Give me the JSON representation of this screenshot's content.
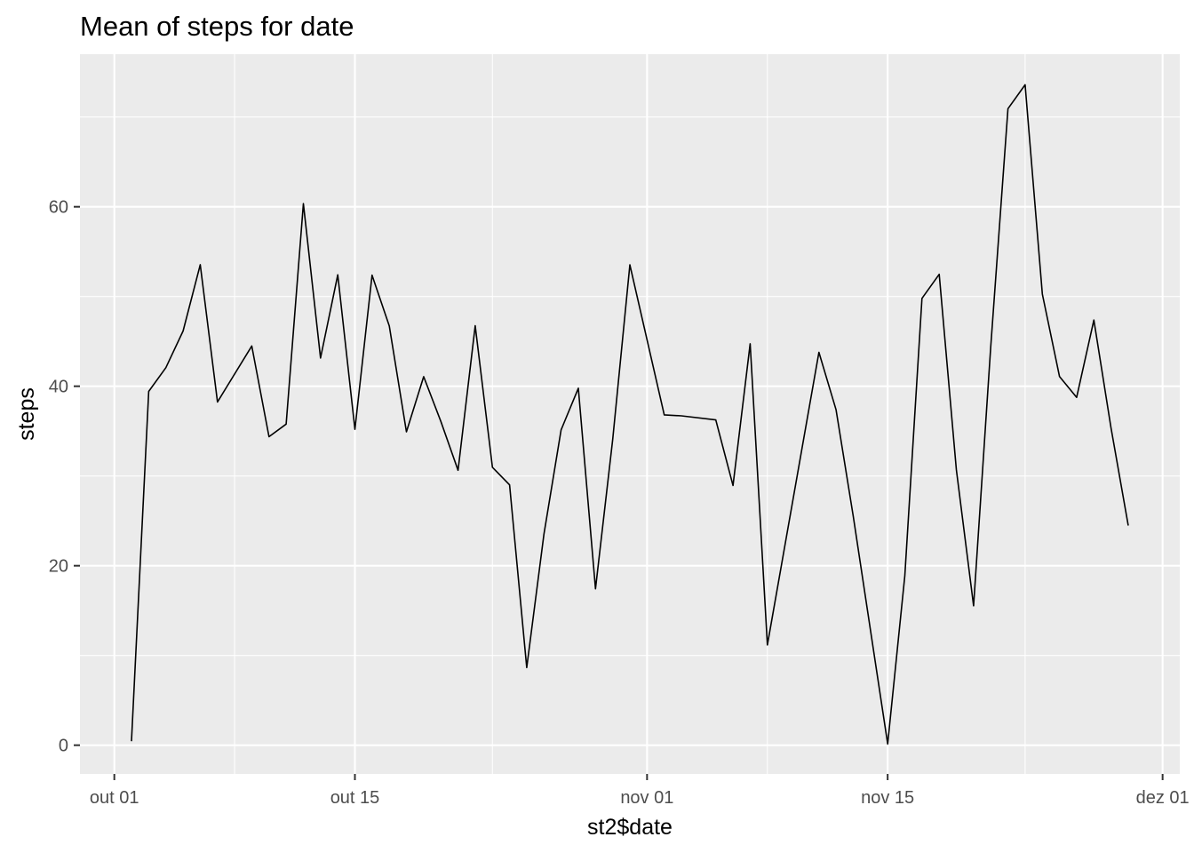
{
  "chart_data": {
    "type": "line",
    "title": "Mean of steps for date",
    "xlabel": "st2$date",
    "ylabel": "steps",
    "x_type": "date",
    "xlim": [
      "2012-09-29",
      "2012-12-02"
    ],
    "ylim": [
      -3.2,
      77.0
    ],
    "grid": true,
    "legend": "none",
    "x_ticks": [
      {
        "value": "2012-10-01",
        "label": "out 01"
      },
      {
        "value": "2012-10-15",
        "label": "out 15"
      },
      {
        "value": "2012-11-01",
        "label": "nov 01"
      },
      {
        "value": "2012-11-15",
        "label": "nov 15"
      },
      {
        "value": "2012-12-01",
        "label": "dez 01"
      }
    ],
    "x_minor_ticks": [
      "2012-10-08",
      "2012-10-23",
      "2012-11-08",
      "2012-11-23"
    ],
    "y_ticks": [
      {
        "value": 0,
        "label": "0"
      },
      {
        "value": 20,
        "label": "20"
      },
      {
        "value": 40,
        "label": "40"
      },
      {
        "value": 60,
        "label": "60"
      }
    ],
    "y_minor_ticks": [
      10,
      30,
      50,
      70
    ],
    "line_color": "#000000",
    "panel_color": "#EBEBEB",
    "series": [
      {
        "x": [
          "2012-10-02",
          "2012-10-03",
          "2012-10-04",
          "2012-10-05",
          "2012-10-06",
          "2012-10-07",
          "2012-10-09",
          "2012-10-10",
          "2012-10-11",
          "2012-10-12",
          "2012-10-13",
          "2012-10-14",
          "2012-10-15",
          "2012-10-16",
          "2012-10-17",
          "2012-10-18",
          "2012-10-19",
          "2012-10-20",
          "2012-10-21",
          "2012-10-22",
          "2012-10-23",
          "2012-10-24",
          "2012-10-25",
          "2012-10-26",
          "2012-10-27",
          "2012-10-28",
          "2012-10-29",
          "2012-10-30",
          "2012-10-31",
          "2012-11-02",
          "2012-11-03",
          "2012-11-05",
          "2012-11-06",
          "2012-11-07",
          "2012-11-08",
          "2012-11-11",
          "2012-11-12",
          "2012-11-13",
          "2012-11-15",
          "2012-11-16",
          "2012-11-17",
          "2012-11-18",
          "2012-11-19",
          "2012-11-20",
          "2012-11-21",
          "2012-11-22",
          "2012-11-23",
          "2012-11-24",
          "2012-11-25",
          "2012-11-26",
          "2012-11-27",
          "2012-11-28",
          "2012-11-29"
        ],
        "values": [
          0.44,
          39.42,
          42.07,
          46.16,
          53.54,
          38.25,
          44.48,
          34.38,
          35.78,
          60.35,
          43.15,
          52.42,
          35.2,
          52.38,
          46.71,
          34.92,
          41.07,
          36.09,
          30.63,
          46.74,
          30.97,
          29.01,
          8.65,
          23.53,
          35.14,
          39.78,
          17.42,
          34.09,
          53.52,
          36.81,
          36.7,
          36.25,
          28.94,
          44.73,
          11.18,
          43.78,
          37.38,
          25.47,
          0.14,
          18.89,
          49.79,
          52.47,
          30.7,
          15.53,
          44.4,
          70.93,
          73.59,
          50.27,
          41.09,
          38.76,
          47.38,
          35.36,
          24.47
        ]
      }
    ]
  }
}
